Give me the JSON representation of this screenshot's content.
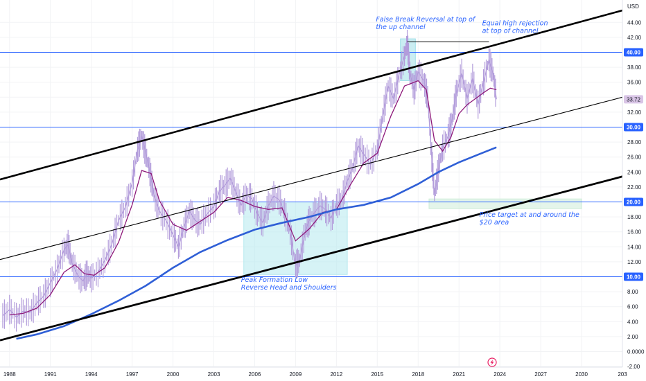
{
  "chart_data": {
    "type": "line",
    "currency": "USD",
    "ylim": [
      -2,
      46
    ],
    "xlim": [
      1987.3,
      2033
    ],
    "y_ticks": [
      "-2.00",
      "0.0000",
      "2.00",
      "4.00",
      "6.00",
      "8.00",
      "10.00",
      "12.00",
      "14.00",
      "16.00",
      "18.00",
      "20.00",
      "22.00",
      "24.00",
      "26.00",
      "28.00",
      "30.00",
      "32.00",
      "34.00",
      "36.00",
      "38.00",
      "40.00",
      "42.00",
      "44.00"
    ],
    "x_ticks": [
      "1988",
      "1991",
      "1994",
      "1997",
      "2000",
      "2003",
      "2006",
      "2009",
      "2012",
      "2015",
      "2018",
      "2021",
      "2024",
      "2027",
      "2030",
      "203"
    ],
    "last_price": "33.72",
    "horizontal_levels": [
      {
        "value": 40,
        "label": "40.00"
      },
      {
        "value": 30,
        "label": "30.00"
      },
      {
        "value": 20,
        "label": "20.00"
      },
      {
        "value": 10,
        "label": "10.00"
      }
    ],
    "channel_lines": [
      {
        "role": "upper",
        "start": [
          1987.3,
          23.0
        ],
        "end": [
          2033,
          45.6
        ]
      },
      {
        "role": "middle",
        "start": [
          1987.3,
          12.3
        ],
        "end": [
          2033,
          34.0
        ]
      },
      {
        "role": "lower",
        "start": [
          1987.3,
          1.5
        ],
        "end": [
          2033,
          23.4
        ]
      }
    ],
    "price_series": {
      "name": "",
      "color": "#b39ddb",
      "points": [
        [
          1987.5,
          4.8
        ],
        [
          1988,
          5.6
        ],
        [
          1988.5,
          4.6
        ],
        [
          1989,
          5.4
        ],
        [
          1989.5,
          5.2
        ],
        [
          1990,
          6.5
        ],
        [
          1990.5,
          7.4
        ],
        [
          1991,
          9.2
        ],
        [
          1991.5,
          11.0
        ],
        [
          1992,
          13.6
        ],
        [
          1992.3,
          14.3
        ],
        [
          1992.6,
          11.8
        ],
        [
          1993,
          10.2
        ],
        [
          1993.4,
          9.4
        ],
        [
          1993.7,
          10.4
        ],
        [
          1994,
          9.8
        ],
        [
          1994.5,
          10.6
        ],
        [
          1995,
          12.2
        ],
        [
          1995.5,
          14.3
        ],
        [
          1996,
          17.5
        ],
        [
          1996.5,
          19.3
        ],
        [
          1997,
          22.5
        ],
        [
          1997.4,
          27.0
        ],
        [
          1997.7,
          28.8
        ],
        [
          1998,
          26.5
        ],
        [
          1998.3,
          24.0
        ],
        [
          1998.6,
          21.0
        ],
        [
          1999,
          18.8
        ],
        [
          1999.5,
          17.5
        ],
        [
          2000,
          15.6
        ],
        [
          2000.4,
          14.0
        ],
        [
          2000.8,
          16.6
        ],
        [
          2001.2,
          18.8
        ],
        [
          2001.6,
          17.6
        ],
        [
          2002,
          17.0
        ],
        [
          2002.5,
          18.4
        ],
        [
          2003,
          19.4
        ],
        [
          2003.4,
          21.4
        ],
        [
          2003.8,
          22.2
        ],
        [
          2004.2,
          23.2
        ],
        [
          2004.6,
          21.4
        ],
        [
          2005,
          19.5
        ],
        [
          2005.4,
          21.0
        ],
        [
          2005.8,
          20.4
        ],
        [
          2006.2,
          18.4
        ],
        [
          2006.6,
          17.2
        ],
        [
          2007,
          19.5
        ],
        [
          2007.4,
          20.8
        ],
        [
          2007.8,
          20.3
        ],
        [
          2008.2,
          18.6
        ],
        [
          2008.6,
          16.0
        ],
        [
          2009,
          11.5
        ],
        [
          2009.3,
          12.2
        ],
        [
          2009.7,
          16.0
        ],
        [
          2010,
          17.5
        ],
        [
          2010.4,
          18.6
        ],
        [
          2010.8,
          19.5
        ],
        [
          2011.2,
          19.0
        ],
        [
          2011.6,
          17.8
        ],
        [
          2012,
          19.6
        ],
        [
          2012.4,
          20.4
        ],
        [
          2012.8,
          22.8
        ],
        [
          2013.2,
          24.6
        ],
        [
          2013.6,
          27.5
        ],
        [
          2014,
          26.4
        ],
        [
          2014.5,
          25.0
        ],
        [
          2015,
          27.0
        ],
        [
          2015.4,
          31.5
        ],
        [
          2015.8,
          35.5
        ],
        [
          2016.2,
          33.8
        ],
        [
          2016.6,
          37.0
        ],
        [
          2017,
          39.5
        ],
        [
          2017.2,
          41.3
        ],
        [
          2017.4,
          37.2
        ],
        [
          2017.7,
          35.0
        ],
        [
          2018,
          37.4
        ],
        [
          2018.4,
          36.2
        ],
        [
          2018.7,
          34.0
        ],
        [
          2019,
          26.0
        ],
        [
          2019.2,
          21.0
        ],
        [
          2019.5,
          24.5
        ],
        [
          2019.8,
          27.2
        ],
        [
          2020.2,
          28.8
        ],
        [
          2020.5,
          31.0
        ],
        [
          2020.8,
          34.5
        ],
        [
          2021.2,
          37.2
        ],
        [
          2021.6,
          33.8
        ],
        [
          2022,
          36.5
        ],
        [
          2022.4,
          33.0
        ],
        [
          2022.8,
          36.0
        ],
        [
          2023.2,
          39.0
        ],
        [
          2023.5,
          37.2
        ],
        [
          2023.75,
          33.72
        ]
      ]
    },
    "ma_short": {
      "name": "",
      "color": "#8e1a7a",
      "points": [
        [
          1988,
          4.9
        ],
        [
          1989,
          5.1
        ],
        [
          1990,
          5.8
        ],
        [
          1991,
          7.6
        ],
        [
          1992,
          10.6
        ],
        [
          1992.8,
          11.6
        ],
        [
          1993.5,
          10.4
        ],
        [
          1994.2,
          10.2
        ],
        [
          1995,
          11.2
        ],
        [
          1996,
          14.6
        ],
        [
          1997,
          19.6
        ],
        [
          1997.7,
          24.2
        ],
        [
          1998.4,
          23.8
        ],
        [
          1999,
          20.2
        ],
        [
          2000,
          17.0
        ],
        [
          2001,
          16.2
        ],
        [
          2002,
          17.4
        ],
        [
          2003,
          18.6
        ],
        [
          2004,
          20.6
        ],
        [
          2005,
          20.2
        ],
        [
          2006,
          19.4
        ],
        [
          2007,
          19.0
        ],
        [
          2008,
          19.2
        ],
        [
          2009,
          14.8
        ],
        [
          2010,
          16.4
        ],
        [
          2011,
          18.6
        ],
        [
          2012,
          19.0
        ],
        [
          2013,
          22.2
        ],
        [
          2014,
          25.2
        ],
        [
          2015,
          26.5
        ],
        [
          2016,
          31.5
        ],
        [
          2017,
          35.5
        ],
        [
          2018,
          36.2
        ],
        [
          2018.6,
          35.0
        ],
        [
          2019.2,
          28.2
        ],
        [
          2019.8,
          26.8
        ],
        [
          2020.4,
          28.6
        ],
        [
          2021,
          31.8
        ],
        [
          2021.6,
          33.0
        ],
        [
          2022.2,
          33.8
        ],
        [
          2022.8,
          34.6
        ],
        [
          2023.3,
          35.2
        ],
        [
          2023.75,
          35.0
        ]
      ]
    },
    "ma_long": {
      "name": "",
      "color": "#2f5fd6",
      "points": [
        [
          1988.5,
          1.7
        ],
        [
          1990,
          2.3
        ],
        [
          1992,
          3.4
        ],
        [
          1994,
          5.0
        ],
        [
          1996,
          6.8
        ],
        [
          1998,
          8.8
        ],
        [
          2000,
          11.2
        ],
        [
          2002,
          13.3
        ],
        [
          2004,
          14.9
        ],
        [
          2006,
          16.3
        ],
        [
          2008,
          17.2
        ],
        [
          2010,
          18.0
        ],
        [
          2012,
          19.0
        ],
        [
          2014,
          19.6
        ],
        [
          2016,
          20.6
        ],
        [
          2018,
          22.4
        ],
        [
          2019.5,
          24.0
        ],
        [
          2021,
          25.3
        ],
        [
          2022.5,
          26.4
        ],
        [
          2023.75,
          27.3
        ]
      ]
    },
    "zones": [
      {
        "x": [
          2016.7,
          2017.8
        ],
        "y": [
          36.2,
          41.8
        ],
        "color": "#9fdfe8"
      },
      {
        "x": [
          2005.2,
          2012.8
        ],
        "y": [
          10.3,
          20.0
        ],
        "color": "#b5e9ee"
      },
      {
        "x": [
          2018.8,
          2030.0
        ],
        "y": [
          19.1,
          20.4
        ],
        "color": "#cdecd8"
      }
    ],
    "equal_high_line": {
      "x": [
        2017.2,
        2023.2
      ],
      "y": 41.4
    },
    "annotations": [
      {
        "text": "False Break Reversal at top of",
        "x": 2014.9,
        "y": 44.1
      },
      {
        "text": "the up channel",
        "x": 2014.9,
        "y": 43.1
      },
      {
        "text": "Equal high rejection",
        "x": 2022.7,
        "y": 43.6
      },
      {
        "text": "at top of channel",
        "x": 2022.7,
        "y": 42.6
      },
      {
        "text": "Price target at and around the",
        "x": 2022.5,
        "y": 18.0
      },
      {
        "text": "$20 area",
        "x": 2022.5,
        "y": 17.0
      },
      {
        "text": "Peak Formation Low",
        "x": 2005.0,
        "y": 9.3
      },
      {
        "text": "Reverse Head and Shoulders",
        "x": 2005.0,
        "y": 8.3
      }
    ]
  }
}
